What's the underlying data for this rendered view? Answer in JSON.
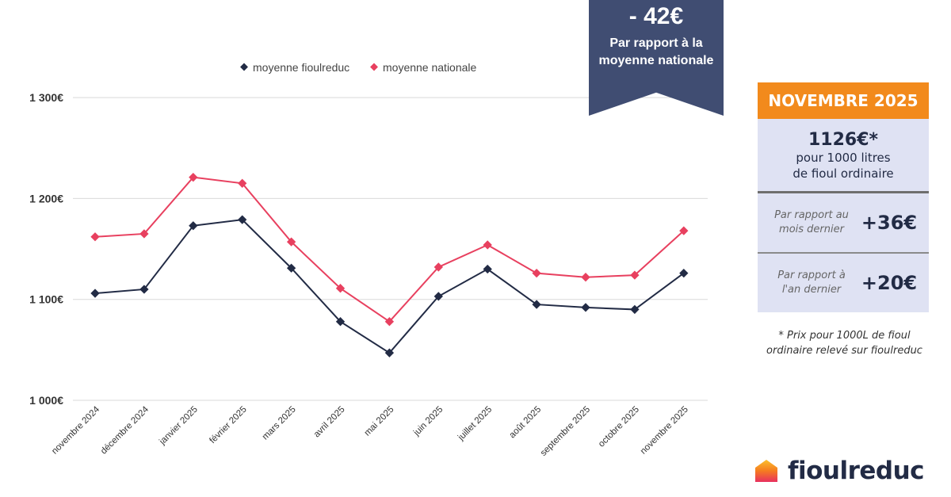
{
  "chart_data": {
    "type": "line",
    "categories": [
      "novembre 2024",
      "décembre 2024",
      "janvier 2025",
      "février 2025",
      "mars 2025",
      "avril 2025",
      "mai 2025",
      "juin 2025",
      "juillet 2025",
      "août 2025",
      "septembre 2025",
      "octobre 2025",
      "novembre 2025"
    ],
    "series": [
      {
        "name": "moyenne fioulreduc",
        "color": "#222b45",
        "values": [
          1106,
          1110,
          1173,
          1179,
          1131,
          1078,
          1047,
          1103,
          1130,
          1095,
          1092,
          1090,
          1126
        ]
      },
      {
        "name": "moyenne nationale",
        "color": "#e8405f",
        "values": [
          1162,
          1165,
          1221,
          1215,
          1157,
          1111,
          1078,
          1132,
          1154,
          1126,
          1122,
          1124,
          1168
        ]
      }
    ],
    "ylim": [
      1000,
      1300
    ],
    "yticks": [
      1000,
      1100,
      1200,
      1300
    ],
    "ytick_labels": [
      "1 000€",
      "1 100€",
      "1 200€",
      "1 300€"
    ],
    "grid": true,
    "legend": "top"
  },
  "banner": {
    "value": "- 42€",
    "line1": "Par rapport à la",
    "line2": "moyenne nationale"
  },
  "panel": {
    "header": "NOVEMBRE 2025",
    "price": "1126€*",
    "line1": "pour 1000 litres",
    "line2": "de fioul ordinaire",
    "rows": [
      {
        "label1": "Par rapport au",
        "label2": "mois dernier",
        "value": "+36€"
      },
      {
        "label1": "Par rapport à",
        "label2": "l'an dernier",
        "value": "+20€"
      }
    ]
  },
  "note": {
    "line1": "* Prix pour 1000L de fioul",
    "line2": "ordinaire relevé sur fioulreduc"
  },
  "logo": {
    "text": "fioulreduc"
  }
}
